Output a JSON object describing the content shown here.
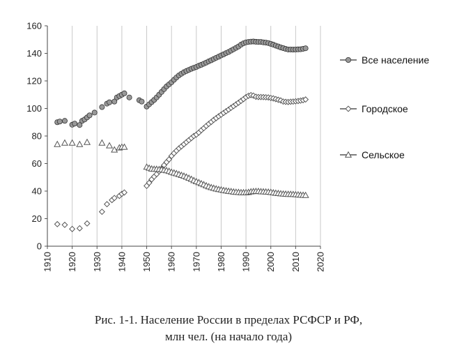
{
  "caption": {
    "line1": "Рис. 1-1. Население России в пределах РСФСР и РФ,",
    "line2": "млн чел. (на начало года)"
  },
  "chart_data": {
    "type": "scatter",
    "title": "",
    "xlabel": "",
    "ylabel": "",
    "xlim": [
      1910,
      2020
    ],
    "ylim": [
      0,
      160
    ],
    "x_ticks": [
      1910,
      1920,
      1930,
      1940,
      1950,
      1960,
      1970,
      1980,
      1990,
      2000,
      2010,
      2020
    ],
    "y_ticks": [
      0,
      20,
      40,
      60,
      80,
      100,
      120,
      140,
      160
    ],
    "grid": "vertical",
    "legend_position": "right",
    "series": [
      {
        "name": "Все население",
        "marker": "circle",
        "color": "#999999",
        "points": [
          [
            1914,
            90.0
          ],
          [
            1915,
            90.5
          ],
          [
            1917,
            91.0
          ],
          [
            1920,
            88.2
          ],
          [
            1921,
            89.0
          ],
          [
            1923,
            88.0
          ],
          [
            1924,
            91.0
          ],
          [
            1925,
            92.0
          ],
          [
            1926,
            93.5
          ],
          [
            1927,
            95.0
          ],
          [
            1929,
            97.0
          ],
          [
            1932,
            101.0
          ],
          [
            1934,
            103.5
          ],
          [
            1935,
            104.5
          ],
          [
            1937,
            105.0
          ],
          [
            1938,
            108.0
          ],
          [
            1939,
            109.0
          ],
          [
            1940,
            110.0
          ],
          [
            1941,
            111.0
          ],
          [
            1943,
            108.0
          ],
          [
            1947,
            106.0
          ],
          [
            1948,
            105.0
          ],
          [
            1950,
            101.4
          ],
          [
            1951,
            103.0
          ],
          [
            1952,
            104.6
          ],
          [
            1953,
            106.2
          ],
          [
            1954,
            108.0
          ],
          [
            1955,
            110.0
          ],
          [
            1956,
            112.0
          ],
          [
            1957,
            114.0
          ],
          [
            1958,
            116.0
          ],
          [
            1959,
            117.5
          ],
          [
            1960,
            119.0
          ],
          [
            1961,
            120.8
          ],
          [
            1962,
            122.5
          ],
          [
            1963,
            124.0
          ],
          [
            1964,
            125.2
          ],
          [
            1965,
            126.3
          ],
          [
            1966,
            127.2
          ],
          [
            1967,
            128.0
          ],
          [
            1968,
            128.8
          ],
          [
            1969,
            129.5
          ],
          [
            1970,
            130.1
          ],
          [
            1971,
            131.0
          ],
          [
            1972,
            131.7
          ],
          [
            1973,
            132.5
          ],
          [
            1974,
            133.3
          ],
          [
            1975,
            134.2
          ],
          [
            1976,
            135.0
          ],
          [
            1977,
            135.9
          ],
          [
            1978,
            136.8
          ],
          [
            1979,
            137.6
          ],
          [
            1980,
            138.5
          ],
          [
            1981,
            139.3
          ],
          [
            1982,
            140.2
          ],
          [
            1983,
            141.0
          ],
          [
            1984,
            142.0
          ],
          [
            1985,
            143.0
          ],
          [
            1986,
            144.0
          ],
          [
            1987,
            145.0
          ],
          [
            1988,
            146.3
          ],
          [
            1989,
            147.3
          ],
          [
            1990,
            148.0
          ],
          [
            1991,
            148.3
          ],
          [
            1992,
            148.5
          ],
          [
            1993,
            148.6
          ],
          [
            1994,
            148.4
          ],
          [
            1995,
            148.3
          ],
          [
            1996,
            148.3
          ],
          [
            1997,
            148.0
          ],
          [
            1998,
            147.8
          ],
          [
            1999,
            147.5
          ],
          [
            2000,
            146.9
          ],
          [
            2001,
            146.3
          ],
          [
            2002,
            145.6
          ],
          [
            2003,
            145.0
          ],
          [
            2004,
            144.3
          ],
          [
            2005,
            143.8
          ],
          [
            2006,
            143.2
          ],
          [
            2007,
            142.8
          ],
          [
            2008,
            142.8
          ],
          [
            2009,
            142.7
          ],
          [
            2010,
            142.8
          ],
          [
            2011,
            142.9
          ],
          [
            2012,
            143.0
          ],
          [
            2013,
            143.3
          ],
          [
            2014,
            143.7
          ]
        ]
      },
      {
        "name": "Городское",
        "marker": "diamond",
        "color": "#555555",
        "points": [
          [
            1914,
            16.0
          ],
          [
            1917,
            15.5
          ],
          [
            1920,
            12.5
          ],
          [
            1923,
            13.0
          ],
          [
            1926,
            16.5
          ],
          [
            1932,
            25.0
          ],
          [
            1934,
            30.5
          ],
          [
            1936,
            33.5
          ],
          [
            1937,
            35.0
          ],
          [
            1939,
            36.5
          ],
          [
            1940,
            38.0
          ],
          [
            1941,
            39.0
          ],
          [
            1950,
            43.8
          ],
          [
            1951,
            46.0
          ],
          [
            1952,
            48.5
          ],
          [
            1953,
            50.5
          ],
          [
            1954,
            52.3
          ],
          [
            1955,
            54.3
          ],
          [
            1956,
            56.3
          ],
          [
            1957,
            58.8
          ],
          [
            1958,
            61.0
          ],
          [
            1959,
            63.0
          ],
          [
            1960,
            65.5
          ],
          [
            1961,
            67.5
          ],
          [
            1962,
            69.3
          ],
          [
            1963,
            71.0
          ],
          [
            1964,
            72.5
          ],
          [
            1965,
            74.0
          ],
          [
            1966,
            75.5
          ],
          [
            1967,
            77.0
          ],
          [
            1968,
            78.5
          ],
          [
            1969,
            80.0
          ],
          [
            1970,
            81.0
          ],
          [
            1971,
            82.5
          ],
          [
            1972,
            84.2
          ],
          [
            1973,
            85.7
          ],
          [
            1974,
            87.3
          ],
          [
            1975,
            88.8
          ],
          [
            1976,
            90.2
          ],
          [
            1977,
            91.7
          ],
          [
            1978,
            93.0
          ],
          [
            1979,
            94.3
          ],
          [
            1980,
            95.5
          ],
          [
            1981,
            96.8
          ],
          [
            1982,
            98.0
          ],
          [
            1983,
            99.2
          ],
          [
            1984,
            100.5
          ],
          [
            1985,
            101.7
          ],
          [
            1986,
            103.0
          ],
          [
            1987,
            104.2
          ],
          [
            1988,
            105.5
          ],
          [
            1989,
            106.8
          ],
          [
            1990,
            108.2
          ],
          [
            1991,
            109.2
          ],
          [
            1992,
            109.7
          ],
          [
            1993,
            109.3
          ],
          [
            1994,
            108.5
          ],
          [
            1995,
            108.3
          ],
          [
            1996,
            108.3
          ],
          [
            1997,
            108.2
          ],
          [
            1998,
            108.1
          ],
          [
            1999,
            108.0
          ],
          [
            2000,
            107.6
          ],
          [
            2001,
            107.3
          ],
          [
            2002,
            106.8
          ],
          [
            2003,
            106.3
          ],
          [
            2004,
            105.8
          ],
          [
            2005,
            105.0
          ],
          [
            2006,
            104.8
          ],
          [
            2007,
            104.7
          ],
          [
            2008,
            104.9
          ],
          [
            2009,
            105.0
          ],
          [
            2010,
            105.2
          ],
          [
            2011,
            105.4
          ],
          [
            2012,
            105.7
          ],
          [
            2013,
            106.0
          ],
          [
            2014,
            106.5
          ]
        ]
      },
      {
        "name": "Сельское",
        "marker": "triangle",
        "color": "#555555",
        "points": [
          [
            1914,
            74.0
          ],
          [
            1917,
            75.0
          ],
          [
            1920,
            75.0
          ],
          [
            1923,
            74.0
          ],
          [
            1926,
            75.5
          ],
          [
            1932,
            75.0
          ],
          [
            1935,
            73.0
          ],
          [
            1937,
            70.0
          ],
          [
            1939,
            71.5
          ],
          [
            1940,
            72.0
          ],
          [
            1941,
            72.0
          ],
          [
            1950,
            57.5
          ],
          [
            1951,
            56.8
          ],
          [
            1952,
            56.2
          ],
          [
            1953,
            56.0
          ],
          [
            1954,
            56.0
          ],
          [
            1955,
            55.8
          ],
          [
            1956,
            55.6
          ],
          [
            1957,
            55.3
          ],
          [
            1958,
            55.0
          ],
          [
            1959,
            54.5
          ],
          [
            1960,
            53.8
          ],
          [
            1961,
            53.3
          ],
          [
            1962,
            52.8
          ],
          [
            1963,
            52.2
          ],
          [
            1964,
            51.6
          ],
          [
            1965,
            51.0
          ],
          [
            1966,
            50.3
          ],
          [
            1967,
            49.5
          ],
          [
            1968,
            48.7
          ],
          [
            1969,
            47.8
          ],
          [
            1970,
            47.0
          ],
          [
            1971,
            46.3
          ],
          [
            1972,
            45.5
          ],
          [
            1973,
            44.8
          ],
          [
            1974,
            44.0
          ],
          [
            1975,
            43.3
          ],
          [
            1976,
            42.7
          ],
          [
            1977,
            42.2
          ],
          [
            1978,
            41.7
          ],
          [
            1979,
            41.3
          ],
          [
            1980,
            41.0
          ],
          [
            1981,
            40.6
          ],
          [
            1982,
            40.3
          ],
          [
            1983,
            40.0
          ],
          [
            1984,
            39.8
          ],
          [
            1985,
            39.5
          ],
          [
            1986,
            39.3
          ],
          [
            1987,
            39.2
          ],
          [
            1988,
            39.0
          ],
          [
            1989,
            39.0
          ],
          [
            1990,
            39.0
          ],
          [
            1991,
            39.2
          ],
          [
            1992,
            39.6
          ],
          [
            1993,
            39.8
          ],
          [
            1994,
            39.9
          ],
          [
            1995,
            39.9
          ],
          [
            1996,
            39.7
          ],
          [
            1997,
            39.6
          ],
          [
            1998,
            39.5
          ],
          [
            1999,
            39.4
          ],
          [
            2000,
            39.2
          ],
          [
            2001,
            38.9
          ],
          [
            2002,
            38.6
          ],
          [
            2003,
            38.4
          ],
          [
            2004,
            38.2
          ],
          [
            2005,
            38.0
          ],
          [
            2006,
            37.9
          ],
          [
            2007,
            37.8
          ],
          [
            2008,
            37.8
          ],
          [
            2009,
            37.7
          ],
          [
            2010,
            37.5
          ],
          [
            2011,
            37.4
          ],
          [
            2012,
            37.2
          ],
          [
            2013,
            37.1
          ],
          [
            2014,
            37.0
          ]
        ]
      }
    ]
  }
}
